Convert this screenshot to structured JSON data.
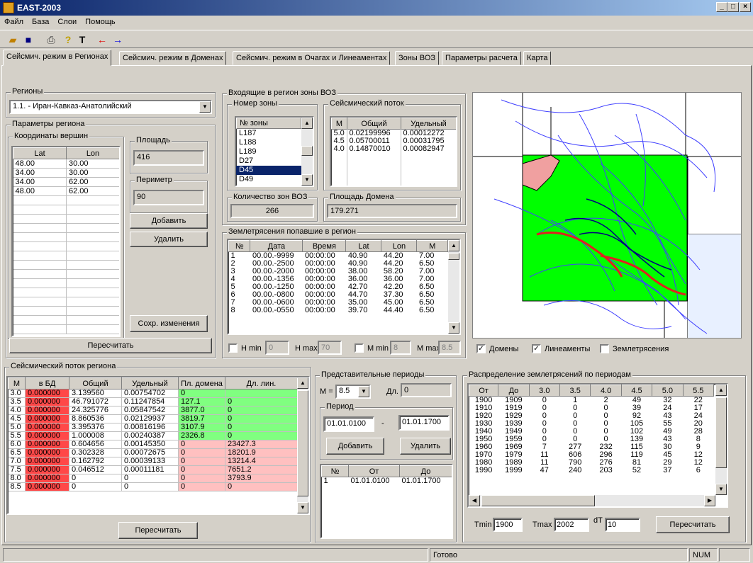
{
  "app": {
    "title": "EAST-2003"
  },
  "menu": [
    "Файл",
    "База",
    "Слои",
    "Помощь"
  ],
  "tabs": [
    "Сейсмич. режим в Регионах",
    "Сейсмич. режим в Доменах",
    "Сейсмич. режим в Очагах и Линеаментах",
    "Зоны ВОЗ",
    "Параметры расчета",
    "Карта"
  ],
  "regions": {
    "label": "Регионы",
    "selected": "1.1. - Иран-Кавказ-Анатолийский"
  },
  "params": {
    "label": "Параметры региона",
    "coords_label": "Координаты вершин",
    "columns": [
      "Lat",
      "Lon"
    ],
    "rows": [
      [
        "48.00",
        "30.00"
      ],
      [
        "34.00",
        "30.00"
      ],
      [
        "34.00",
        "62.00"
      ],
      [
        "48.00",
        "62.00"
      ]
    ],
    "area_label": "Площадь",
    "area_value": "416",
    "perimeter_label": "Периметр",
    "perimeter_value": "90",
    "add": "Добавить",
    "delete": "Удалить",
    "save": "Сохр. изменения",
    "recalc": "Пересчитать"
  },
  "zones": {
    "label": "Входящие в регион зоны ВОЗ",
    "number_label": "Номер зоны",
    "number_header": "№ зоны",
    "items": [
      "L187",
      "L188",
      "L189",
      "D27",
      "D45",
      "D49"
    ],
    "selected_index": 4,
    "flow_label": "Сейсмический поток",
    "flow_columns": [
      "M",
      "Общий",
      "Удельный"
    ],
    "flow_rows": [
      [
        "5.0",
        "0.02199996",
        "0.00012272"
      ],
      [
        "4.5",
        "0.05700011",
        "0.00031795"
      ],
      [
        "4.0",
        "0.14870010",
        "0.00082947"
      ]
    ],
    "count_label": "Количество зон ВОЗ",
    "count_value": "266",
    "domain_area_label": "Площадь Домена",
    "domain_area_value": "179.271"
  },
  "quakes": {
    "label": "Землетрясения попавшие в регион",
    "columns": [
      "№",
      "Дата",
      "Время",
      "Lat",
      "Lon",
      "M"
    ],
    "rows": [
      [
        "1",
        "00.00.-9999",
        "00:00:00",
        "40.90",
        "44.20",
        "7.00"
      ],
      [
        "2",
        "00.00.-2500",
        "00:00:00",
        "40.90",
        "44.20",
        "6.50"
      ],
      [
        "3",
        "00.00.-2000",
        "00:00:00",
        "38.00",
        "58.20",
        "7.00"
      ],
      [
        "4",
        "00.00.-1356",
        "00:00:00",
        "36.00",
        "36.00",
        "7.00"
      ],
      [
        "5",
        "00.00.-1250",
        "00:00:00",
        "42.70",
        "42.20",
        "6.50"
      ],
      [
        "6",
        "00.00.-0800",
        "00:00:00",
        "44.70",
        "37.30",
        "6.50"
      ],
      [
        "7",
        "00.00.-0600",
        "00:00:00",
        "35.00",
        "45.00",
        "6.50"
      ],
      [
        "8",
        "00.00.-0550",
        "00:00:00",
        "39.70",
        "44.40",
        "6.50"
      ]
    ],
    "hmin_label": "H min",
    "hmin_value": "0",
    "hmax_label": "H max",
    "hmax_value": "70",
    "mmin_label": "M min",
    "mmin_value": "8",
    "mmax_label": "M max",
    "mmax_value": "8.5"
  },
  "map_checks": {
    "domains": "Домены",
    "lineaments": "Линеаменты",
    "earthquakes": "Землетрясения"
  },
  "flow": {
    "label": "Сейсмический поток региона",
    "columns": [
      "M",
      "в БД",
      "Общий",
      "Удельный",
      "Пл. домена",
      "Дл. лин."
    ],
    "rows": [
      [
        "3.0",
        "0.000000",
        "3.139560",
        "0.00754702",
        "0",
        ""
      ],
      [
        "3.5",
        "0.000000",
        "46.791072",
        "0.11247854",
        "127.1",
        "0"
      ],
      [
        "4.0",
        "0.000000",
        "24.325776",
        "0.05847542",
        "3877.0",
        "0"
      ],
      [
        "4.5",
        "0.000000",
        "8.860536",
        "0.02129937",
        "3819.7",
        "0"
      ],
      [
        "5.0",
        "0.000000",
        "3.395376",
        "0.00816196",
        "3107.9",
        "0"
      ],
      [
        "5.5",
        "0.000000",
        "1.000008",
        "0.00240387",
        "2326.8",
        "0"
      ],
      [
        "6.0",
        "0.000000",
        "0.604656",
        "0.00145350",
        "0",
        "23427.3"
      ],
      [
        "6.5",
        "0.000000",
        "0.302328",
        "0.00072675",
        "0",
        "18201.9"
      ],
      [
        "7.0",
        "0.000000",
        "0.162792",
        "0.00039133",
        "0",
        "13214.4"
      ],
      [
        "7.5",
        "0.000000",
        "0.046512",
        "0.00011181",
        "0",
        "7651.2"
      ],
      [
        "8.0",
        "0.000000",
        "0",
        "0",
        "0",
        "3793.9"
      ],
      [
        "8.5",
        "0.000000",
        "0",
        "0",
        "0",
        "0"
      ]
    ],
    "recalc": "Пересчитать"
  },
  "periods": {
    "label": "Представительные периоды",
    "m_label": "M =",
    "m_value": "8.5",
    "dl_label": "Дл.",
    "dl_value": "0",
    "period_label": "Период",
    "from": "01.01.0100",
    "dash": "-",
    "to": "01.01.1700",
    "add": "Добавить",
    "delete": "Удалить",
    "columns": [
      "№",
      "От",
      "До"
    ],
    "rows": [
      [
        "1",
        "01.01.0100",
        "01.01.1700"
      ]
    ]
  },
  "distribution": {
    "label": "Распределение землетрясений по периодам",
    "columns": [
      "От",
      "До",
      "3.0",
      "3.5",
      "4.0",
      "4.5",
      "5.0",
      "5.5"
    ],
    "rows": [
      [
        "1900",
        "1909",
        "0",
        "1",
        "2",
        "49",
        "32",
        "22"
      ],
      [
        "1910",
        "1919",
        "0",
        "0",
        "0",
        "39",
        "24",
        "17"
      ],
      [
        "1920",
        "1929",
        "0",
        "0",
        "0",
        "92",
        "43",
        "24"
      ],
      [
        "1930",
        "1939",
        "0",
        "0",
        "0",
        "105",
        "55",
        "20"
      ],
      [
        "1940",
        "1949",
        "0",
        "0",
        "0",
        "102",
        "49",
        "28"
      ],
      [
        "1950",
        "1959",
        "0",
        "0",
        "0",
        "139",
        "43",
        "8"
      ],
      [
        "1960",
        "1969",
        "7",
        "277",
        "232",
        "115",
        "30",
        "9"
      ],
      [
        "1970",
        "1979",
        "11",
        "606",
        "296",
        "119",
        "45",
        "12"
      ],
      [
        "1980",
        "1989",
        "11",
        "790",
        "276",
        "81",
        "29",
        "12"
      ],
      [
        "1990",
        "1999",
        "47",
        "240",
        "203",
        "52",
        "37",
        "6"
      ]
    ],
    "tmin_label": "Tmin",
    "tmin_value": "1900",
    "tmax_label": "Tmax",
    "tmax_value": "2002",
    "dt_label": "dT",
    "dt_value": "10",
    "recalc": "Пересчитать"
  },
  "status": {
    "text": "Готово",
    "num": "NUM"
  },
  "colors": {
    "domain_green": "#00ff00",
    "lineament_red": "#e02020",
    "lines_blue": "#4040ff",
    "pink_domain": "#f0a0a0"
  }
}
